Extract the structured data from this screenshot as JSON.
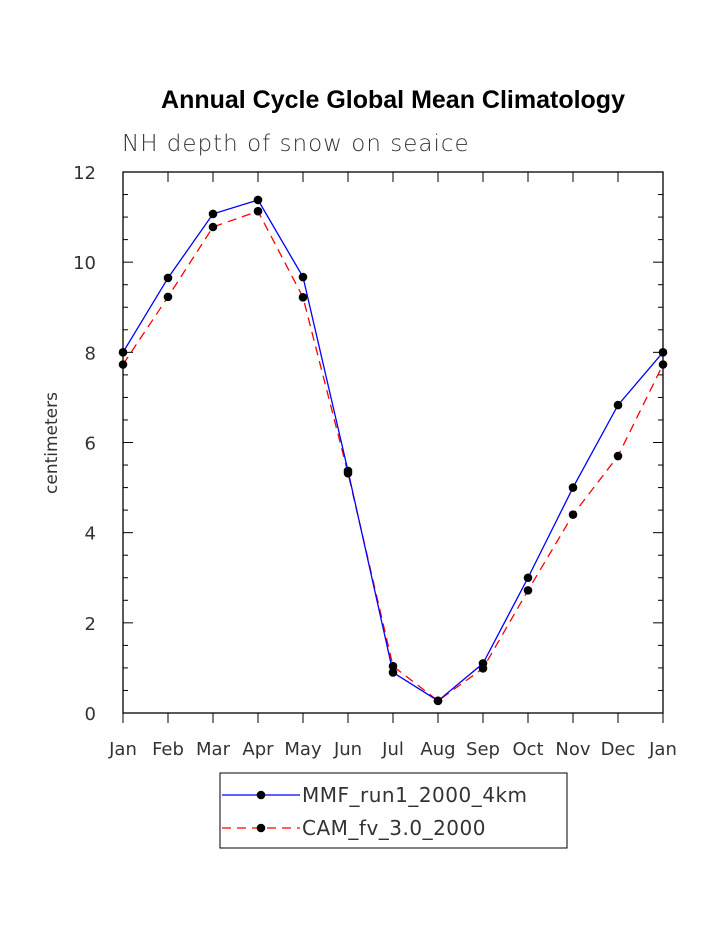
{
  "chart_data": {
    "type": "line",
    "title": "Annual Cycle Global Mean Climatology",
    "subtitle": "NH depth of snow on seaice",
    "xlabel": "",
    "ylabel": "centimeters",
    "categories": [
      "Jan",
      "Feb",
      "Mar",
      "Apr",
      "May",
      "Jun",
      "Jul",
      "Aug",
      "Sep",
      "Oct",
      "Nov",
      "Dec",
      "Jan"
    ],
    "ylim": [
      0,
      12
    ],
    "yticks": [
      "0",
      "2",
      "4",
      "6",
      "8",
      "10",
      "12"
    ],
    "grid": false,
    "legend_position": "bottom",
    "series": [
      {
        "name": "MMF_run1_2000_4km",
        "color": "#0000ff",
        "style": "solid",
        "marker": "circle",
        "values": [
          8.0,
          9.65,
          11.07,
          11.38,
          9.67,
          5.37,
          0.9,
          0.27,
          1.1,
          3.0,
          5.0,
          6.83,
          8.0
        ]
      },
      {
        "name": "CAM_fv_3.0_2000",
        "color": "#ff0000",
        "style": "dashed",
        "marker": "circle",
        "values": [
          7.73,
          9.23,
          10.78,
          11.13,
          9.22,
          5.32,
          1.04,
          0.27,
          0.99,
          2.72,
          4.4,
          5.7,
          7.73
        ]
      }
    ]
  }
}
